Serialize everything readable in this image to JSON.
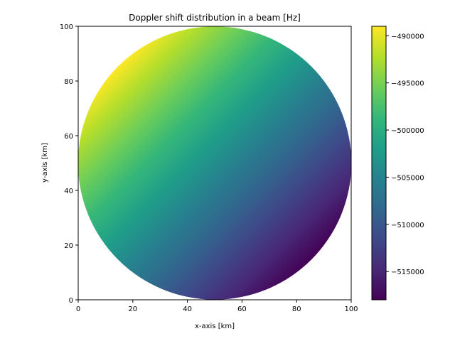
{
  "chart_data": {
    "type": "heatmap",
    "title": "Doppler shift distribution in a beam [Hz]",
    "xlabel": "x-axis [km]",
    "ylabel": "y-axis [km]",
    "xlim": [
      0,
      100
    ],
    "ylim": [
      0,
      100
    ],
    "xticks": [
      0,
      20,
      40,
      60,
      80,
      100
    ],
    "yticks": [
      0,
      20,
      40,
      60,
      80,
      100
    ],
    "colormap": "viridis",
    "region": {
      "shape": "circle",
      "center": [
        50,
        50
      ],
      "radius": 50
    },
    "field": {
      "description": "Doppler shift varies linearly, increasing toward upper-left, decreasing toward lower-right",
      "value_at_top_left_edge": -489500,
      "value_at_center": -503500,
      "value_at_bottom_right_edge": -518000
    },
    "colorbar": {
      "min": -518000,
      "max": -489000,
      "ticks": [
        -490000,
        -495000,
        -500000,
        -505000,
        -510000,
        -515000
      ],
      "tick_labels": [
        "−490000",
        "−495000",
        "−500000",
        "−505000",
        "−510000",
        "−515000"
      ]
    },
    "grid": false,
    "legend": "none"
  }
}
